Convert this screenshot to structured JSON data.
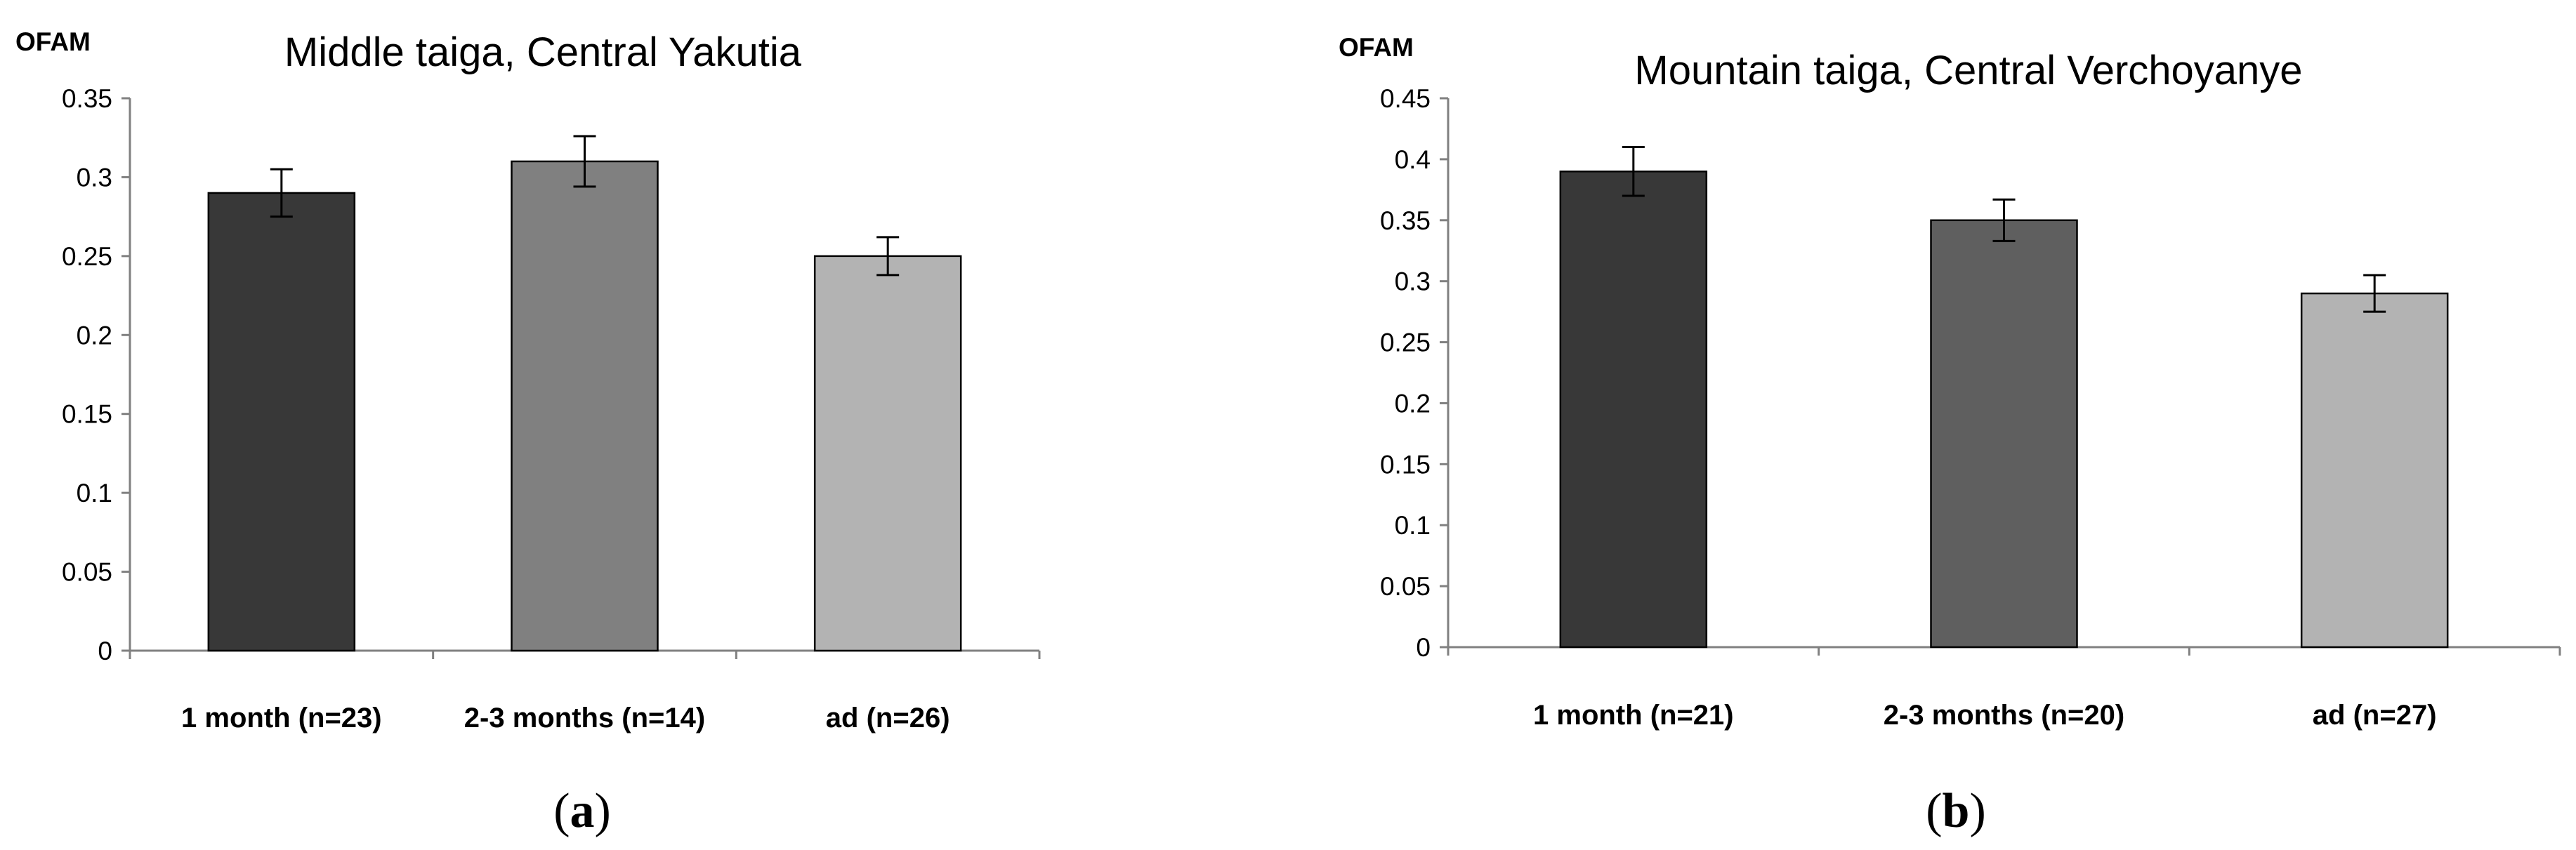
{
  "chart_data": [
    {
      "type": "bar",
      "title": "Middle taiga, Central Yakutia",
      "ylabel": "OFAM",
      "xlabel": "",
      "categories": [
        "1 month (n=23)",
        "2-3 months (n=14)",
        "ad (n=26)"
      ],
      "values": [
        0.29,
        0.31,
        0.25
      ],
      "errors": [
        0.015,
        0.016,
        0.012
      ],
      "ylim": [
        0,
        0.35
      ],
      "yticks": [
        0,
        0.05,
        0.1,
        0.15,
        0.2,
        0.25,
        0.3,
        0.35
      ],
      "ytick_labels": [
        "0",
        "0.05",
        "0.1",
        "0.15",
        "0.2",
        "0.25",
        "0.3",
        "0.35"
      ],
      "bar_colors": [
        "#383838",
        "#808080",
        "#b3b3b3"
      ],
      "grid": false,
      "legend": "none",
      "caption": {
        "open": "(",
        "letter": "a",
        "close": ")"
      }
    },
    {
      "type": "bar",
      "title": "Mountain taiga, Central Verchoyanye",
      "ylabel": "OFAM",
      "xlabel": "",
      "categories": [
        "1 month (n=21)",
        "2-3 months (n=20)",
        "ad (n=27)"
      ],
      "values": [
        0.39,
        0.35,
        0.29
      ],
      "errors": [
        0.02,
        0.017,
        0.015
      ],
      "ylim": [
        0,
        0.45
      ],
      "yticks": [
        0,
        0.05,
        0.1,
        0.15,
        0.2,
        0.25,
        0.3,
        0.35,
        0.4,
        0.45
      ],
      "ytick_labels": [
        "0",
        "0.05",
        "0.1",
        "0.15",
        "0.2",
        "0.25",
        "0.3",
        "0.35",
        "0.4",
        "0.45"
      ],
      "bar_colors": [
        "#383838",
        "#5f5f5f",
        "#b3b3b3"
      ],
      "grid": false,
      "legend": "none",
      "caption": {
        "open": "(",
        "letter": "b",
        "close": ")"
      }
    }
  ]
}
